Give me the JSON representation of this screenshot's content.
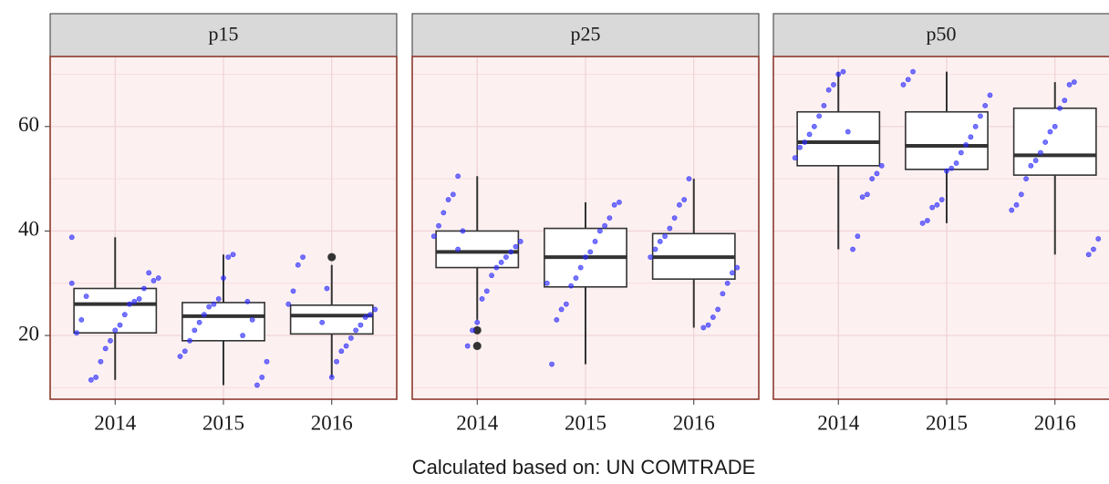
{
  "chart_data": [
    {
      "type": "box",
      "title": "p15",
      "categories": [
        "2014",
        "2015",
        "2016"
      ],
      "whisker_low": [
        11.5,
        10.5,
        12
      ],
      "q1": [
        20.5,
        19,
        20.3
      ],
      "median": [
        26,
        23.7,
        23.8
      ],
      "q3": [
        29,
        26.3,
        25.8
      ],
      "whisker_high": [
        38.8,
        35.5,
        33.5
      ],
      "outliers": [
        [],
        [],
        [
          35
        ]
      ],
      "points": [
        [
          38.8,
          31,
          30.5,
          32,
          29,
          27,
          26.5,
          26,
          24,
          22,
          21,
          19,
          17.5,
          15,
          12,
          11.5,
          27.5,
          23,
          20.5,
          30
        ],
        [
          35.5,
          35,
          31,
          27,
          26,
          25.5,
          24,
          22.5,
          21,
          19,
          17,
          16,
          15,
          12,
          10.5,
          23,
          26.5,
          20
        ],
        [
          35,
          33.5,
          28.5,
          26,
          25,
          24,
          23.5,
          22,
          21,
          19.5,
          18,
          17,
          15,
          12,
          29,
          22.5
        ]
      ],
      "ylim": [
        7.8,
        73.4
      ],
      "yticks": [
        20,
        40,
        60
      ],
      "minor_yticks": [
        10,
        30,
        50,
        70
      ],
      "grid": true,
      "point_color": "#2b2bff"
    },
    {
      "type": "box",
      "title": "p25",
      "categories": [
        "2014",
        "2015",
        "2016"
      ],
      "whisker_low": [
        23,
        14.5,
        21.5
      ],
      "q1": [
        33,
        29.3,
        30.8
      ],
      "median": [
        36,
        35,
        35
      ],
      "q3": [
        40,
        40.5,
        39.5
      ],
      "whisker_high": [
        50.5,
        45.5,
        50
      ],
      "outliers": [
        [
          21,
          18
        ],
        [],
        []
      ],
      "points": [
        [
          50.5,
          47,
          46,
          43.5,
          41,
          39,
          38,
          37,
          36,
          35,
          34,
          33,
          31.5,
          28.5,
          27,
          22.5,
          21,
          18,
          40,
          36.5
        ],
        [
          45.5,
          45,
          42.5,
          41,
          40,
          38,
          36,
          35,
          33,
          31,
          29.5,
          26,
          25,
          23,
          14.5,
          30
        ],
        [
          50,
          46,
          45,
          42.5,
          40.5,
          39,
          38,
          36.5,
          35,
          33,
          32,
          30,
          28,
          25,
          23.5,
          22,
          21.5
        ]
      ],
      "ylim": [
        7.8,
        73.4
      ],
      "yticks": [
        20,
        40,
        60
      ],
      "minor_yticks": [
        10,
        30,
        50,
        70
      ],
      "grid": true,
      "point_color": "#2b2bff"
    },
    {
      "type": "box",
      "title": "p50",
      "categories": [
        "2014",
        "2015",
        "2016"
      ],
      "whisker_low": [
        36.5,
        41.5,
        35.5
      ],
      "q1": [
        52.5,
        51.8,
        50.7
      ],
      "median": [
        57,
        56.3,
        54.5
      ],
      "q3": [
        62.8,
        62.8,
        63.5
      ],
      "whisker_high": [
        70.5,
        70.5,
        68.5
      ],
      "outliers": [
        [],
        [],
        []
      ],
      "points": [
        [
          70.5,
          70,
          68,
          67,
          64,
          62,
          60,
          58.5,
          57,
          56,
          54,
          52.5,
          51,
          50,
          47,
          46.5,
          39,
          36.5,
          59
        ],
        [
          70.5,
          69,
          68,
          66,
          64,
          62,
          60,
          58,
          56.5,
          55,
          53,
          52,
          51.5,
          46,
          45,
          44.5,
          42,
          41.5
        ],
        [
          68.5,
          68,
          65,
          63.5,
          60,
          59,
          57,
          55,
          53.5,
          52.5,
          50,
          47,
          45,
          44,
          38.5,
          36.5,
          35.5
        ]
      ],
      "ylim": [
        7.8,
        73.4
      ],
      "yticks": [
        20,
        40,
        60
      ],
      "minor_yticks": [
        10,
        30,
        50,
        70
      ],
      "grid": true,
      "point_color": "#2b2bff"
    }
  ],
  "caption": "Calculated based on: UN COMTRADE"
}
